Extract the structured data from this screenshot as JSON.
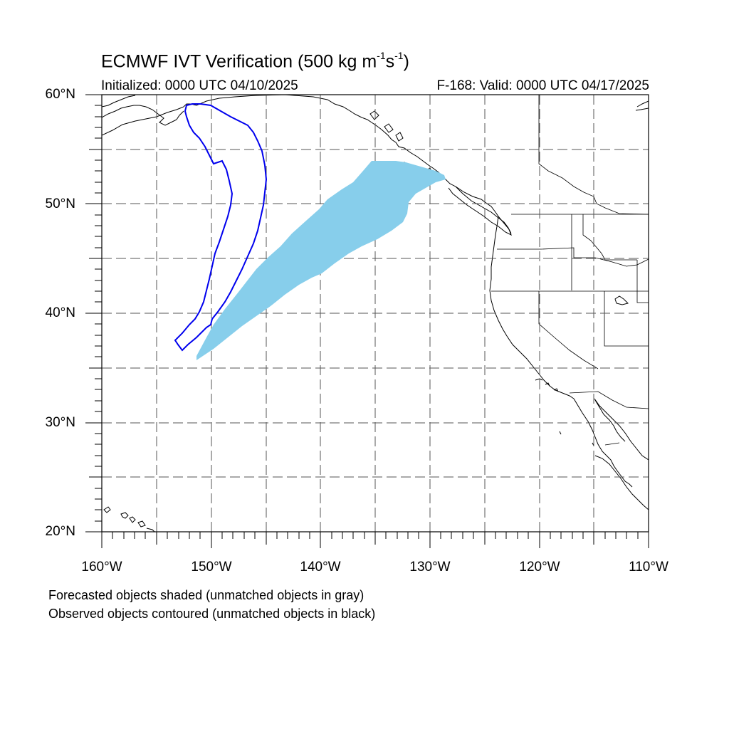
{
  "header": {
    "title_prefix": "ECMWF IVT Verification (500 kg m",
    "title_exp1": "-1",
    "title_mid": "s",
    "title_exp2": "-1",
    "title_suffix": ")",
    "initialized": "Initialized: 0000 UTC 04/10/2025",
    "valid": "F-168: Valid: 0000 UTC 04/17/2025"
  },
  "map": {
    "projection": "cylindrical equidistant",
    "lon_range": [
      -160,
      -110
    ],
    "lat_range": [
      20,
      60
    ],
    "gridlines": "dashed",
    "lat_labels": [
      "60°N",
      "50°N",
      "40°N",
      "30°N",
      "20°N"
    ],
    "lon_labels": [
      "160°W",
      "150°W",
      "140°W",
      "130°W",
      "120°W",
      "110°W"
    ],
    "colors": {
      "forecast_fill": "#87ceeb",
      "observed_contour": "#0000ee",
      "coastline": "#000000"
    }
  },
  "notes": {
    "line1": "Forecasted objects shaded (unmatched objects in gray)",
    "line2": "Observed objects contoured (unmatched objects in black)"
  }
}
